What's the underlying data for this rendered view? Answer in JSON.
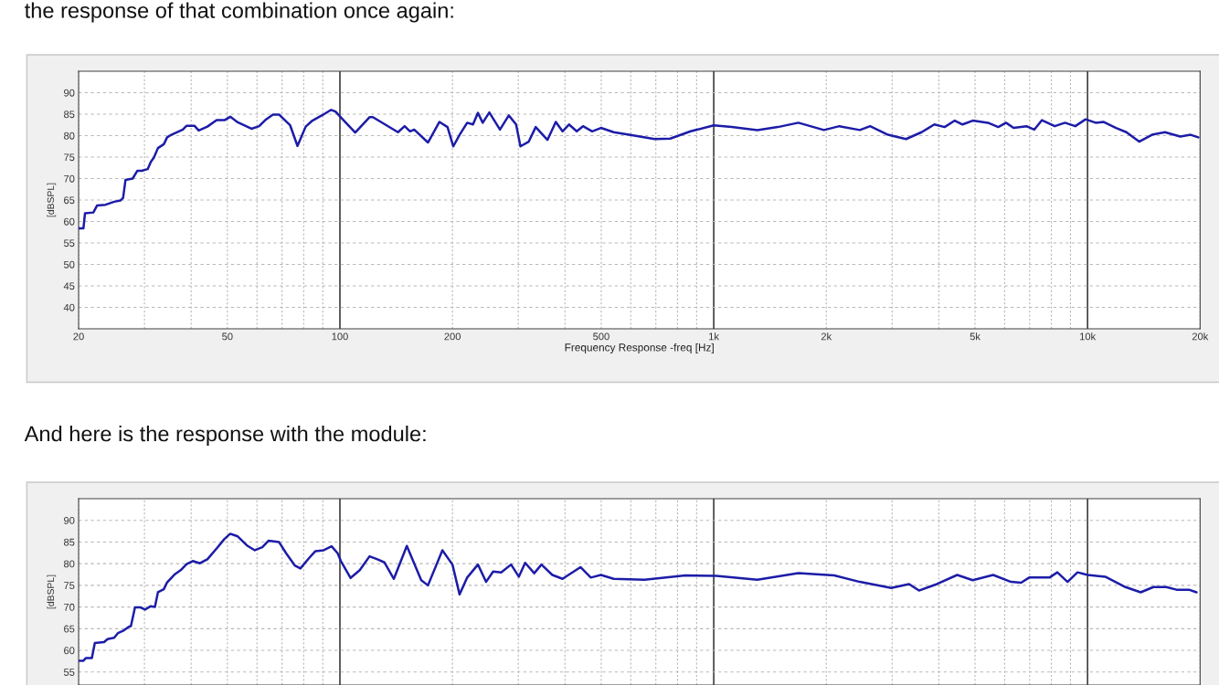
{
  "chart_data": [
    {
      "type": "line",
      "annotations": [
        "the response of that combination once again:"
      ],
      "xlabel": "Frequency Response -freq [Hz]",
      "ylabel": "[dBSPL]",
      "log": "x",
      "grid": true,
      "xlim": [
        20,
        20000
      ],
      "ylim": [
        35,
        95
      ],
      "yticks": [
        40,
        45,
        50,
        55,
        60,
        65,
        70,
        75,
        80,
        85,
        90
      ],
      "xticks": [
        20,
        {
          "value": 30,
          "label": null
        },
        {
          "value": 40,
          "label": null
        },
        50,
        {
          "value": 60,
          "label": null
        },
        {
          "value": 70,
          "label": null
        },
        {
          "value": 80,
          "label": null
        },
        {
          "value": 90,
          "label": null
        },
        100,
        200,
        {
          "value": 300,
          "label": null
        },
        {
          "value": 400,
          "label": null
        },
        500,
        {
          "value": 600,
          "label": null
        },
        {
          "value": 700,
          "label": null
        },
        {
          "value": 800,
          "label": null
        },
        {
          "value": 900,
          "label": null
        },
        {
          "value": 1000,
          "label": "1k"
        },
        {
          "value": 2000,
          "label": "2k"
        },
        {
          "value": 3000,
          "label": null
        },
        {
          "value": 4000,
          "label": null
        },
        {
          "value": 5000,
          "label": "5k"
        },
        {
          "value": 6000,
          "label": null
        },
        {
          "value": 7000,
          "label": null
        },
        {
          "value": 8000,
          "label": null
        },
        {
          "value": 9000,
          "label": null
        },
        {
          "value": 10000,
          "label": "10k"
        },
        {
          "value": 20000,
          "label": "20k"
        }
      ],
      "series": [
        {
          "color": "#1c1ca8",
          "x": [
            20,
            20.6,
            20.8,
            21.9,
            22.4,
            23.6,
            24.9,
            25.9,
            26.3,
            26.7,
            27.9,
            28.7,
            29.5,
            30.6,
            31.2,
            31.8,
            32.6,
            33.8,
            34.5,
            35.4,
            38.0,
            38.9,
            40.8,
            41.9,
            44.2,
            46.8,
            49.1,
            50.9,
            53.3,
            58.0,
            60.8,
            63.1,
            66.2,
            68.7,
            73.6,
            77.0,
            81.0,
            84.4,
            90.3,
            94.7,
            97.3,
            102.5,
            109.9,
            120,
            122.5,
            143,
            149,
            154,
            158,
            172,
            184.6,
            194,
            201,
            209,
            219,
            227,
            234,
            241,
            251,
            268,
            283,
            296,
            304,
            320,
            334,
            359,
            378,
            394,
            410,
            430,
            447,
            473,
            499,
            540,
            594,
            695,
            765,
            867,
            1000,
            1117,
            1308,
            1484,
            1684,
            1972,
            2168,
            2459,
            2620,
            2925,
            3268,
            3597,
            3891,
            4146,
            4412,
            4630,
            4930,
            5414,
            5770,
            6050,
            6340,
            6860,
            7200,
            7550,
            8170,
            8700,
            9270,
            9880,
            10510,
            11020,
            11920,
            12700,
            13740,
            14870,
            16100,
            17700,
            18870,
            19780
          ],
          "values": [
            58.4,
            58.4,
            61.9,
            62.1,
            63.7,
            63.9,
            64.6,
            64.9,
            65.5,
            69.7,
            70.0,
            71.8,
            71.8,
            72.2,
            73.9,
            74.9,
            77.1,
            78.0,
            79.6,
            80.2,
            81.4,
            82.3,
            82.3,
            81.2,
            82.1,
            83.6,
            83.6,
            84.4,
            83.1,
            81.6,
            82.2,
            83.6,
            84.9,
            84.9,
            82.4,
            77.6,
            82.1,
            83.5,
            84.9,
            86.0,
            85.6,
            83.5,
            80.7,
            84.3,
            84.3,
            80.8,
            82.2,
            81.0,
            81.4,
            78.4,
            83.2,
            82.0,
            77.5,
            80.2,
            83.0,
            82.6,
            85.3,
            83.0,
            85.4,
            81.4,
            84.7,
            82.6,
            77.5,
            78.6,
            82.0,
            79.0,
            83.2,
            81.0,
            82.6,
            81.0,
            82.2,
            81.0,
            81.8,
            80.8,
            80.2,
            79.2,
            79.3,
            81.0,
            82.4,
            82.0,
            81.3,
            82.0,
            83.0,
            81.3,
            82.2,
            81.3,
            82.2,
            80.2,
            79.2,
            80.8,
            82.6,
            82.0,
            83.5,
            82.6,
            83.5,
            83.0,
            82.0,
            83.0,
            81.8,
            82.2,
            81.4,
            83.6,
            82.2,
            83.0,
            82.2,
            83.8,
            83.0,
            83.2,
            81.8,
            80.8,
            78.6,
            80.2,
            80.8,
            79.8,
            80.2,
            79.6
          ]
        }
      ]
    },
    {
      "type": "line",
      "annotations": [
        "And here is the response with the module:"
      ],
      "ylabel": "[dBSPL]",
      "log": "x",
      "grid": true,
      "tick_labels": "y",
      "xlim": [
        20,
        20000
      ],
      "ylim": [
        52,
        95
      ],
      "yticks": [
        55,
        60,
        65,
        70,
        75,
        80,
        85,
        90
      ],
      "xticks": [
        {
          "value": 20,
          "label": null
        },
        {
          "value": 30,
          "label": null
        },
        {
          "value": 40,
          "label": null
        },
        {
          "value": 50,
          "label": null
        },
        {
          "value": 60,
          "label": null
        },
        {
          "value": 70,
          "label": null
        },
        {
          "value": 80,
          "label": null
        },
        {
          "value": 90,
          "label": null
        },
        {
          "value": 100,
          "label": null
        },
        {
          "value": 200,
          "label": null
        },
        {
          "value": 300,
          "label": null
        },
        {
          "value": 400,
          "label": null
        },
        {
          "value": 500,
          "label": null
        },
        {
          "value": 600,
          "label": null
        },
        {
          "value": 700,
          "label": null
        },
        {
          "value": 800,
          "label": null
        },
        {
          "value": 900,
          "label": null
        },
        {
          "value": 1000,
          "label": null
        },
        {
          "value": 2000,
          "label": null
        },
        {
          "value": 3000,
          "label": null
        },
        {
          "value": 4000,
          "label": null
        },
        {
          "value": 5000,
          "label": null
        },
        {
          "value": 6000,
          "label": null
        },
        {
          "value": 7000,
          "label": null
        },
        {
          "value": 8000,
          "label": null
        },
        {
          "value": 9000,
          "label": null
        },
        {
          "value": 10000,
          "label": null
        },
        {
          "value": 20000,
          "label": null
        }
      ],
      "series": [
        {
          "color": "#1c1ca8",
          "x": [
            20,
            20.6,
            20.9,
            21.7,
            22.1,
            23.4,
            23.9,
            24.9,
            25.5,
            26.3,
            27.2,
            27.6,
            28.3,
            29.3,
            30.1,
            31.2,
            32.0,
            32.6,
            33.8,
            34.5,
            36.1,
            37.5,
            38.9,
            40.4,
            42.2,
            44.2,
            46.8,
            49.1,
            50.9,
            53.3,
            56.4,
            59.2,
            62.0,
            64.4,
            68.7,
            71.8,
            75.7,
            78.4,
            82.5,
            86.0,
            90.5,
            95.0,
            98.6,
            100.6,
            106.8,
            113,
            120,
            126,
            131.5,
            139.4,
            151,
            165,
            172,
            188,
            200,
            209,
            219,
            234,
            246,
            257,
            270,
            287,
            301,
            313,
            331,
            346,
            370,
            394,
            440,
            469,
            499,
            540,
            653,
            840,
            1016,
            1308,
            1684,
            2100,
            2459,
            2985,
            3330,
            3540,
            3955,
            4480,
            4930,
            5590,
            6240,
            6640,
            6980,
            7910,
            8300,
            8840,
            9400,
            10000,
            11150,
            12630,
            13870,
            15000,
            16240,
            17290,
            18670,
            19560
          ],
          "values": [
            57.6,
            57.6,
            58.2,
            58.2,
            61.7,
            61.9,
            62.6,
            62.9,
            64.0,
            64.5,
            65.4,
            65.6,
            69.9,
            69.9,
            69.4,
            70.2,
            70.0,
            73.4,
            74.1,
            75.7,
            77.5,
            78.5,
            79.9,
            80.6,
            80.1,
            81.0,
            83.5,
            85.7,
            86.9,
            86.3,
            84.2,
            83.1,
            83.8,
            85.3,
            85.0,
            82.4,
            79.6,
            78.9,
            81.2,
            82.9,
            83.1,
            84.0,
            82.4,
            80.6,
            76.7,
            78.5,
            81.7,
            81.0,
            80.3,
            76.5,
            84.1,
            76.2,
            75.0,
            83.1,
            79.8,
            72.9,
            76.8,
            79.8,
            75.8,
            78.2,
            78.0,
            79.8,
            77.0,
            80.2,
            77.8,
            79.8,
            77.4,
            76.5,
            79.2,
            76.8,
            77.4,
            76.5,
            76.3,
            77.3,
            77.2,
            76.3,
            77.8,
            77.3,
            75.8,
            74.4,
            75.3,
            73.8,
            75.3,
            77.4,
            76.2,
            77.4,
            75.8,
            75.6,
            76.8,
            76.8,
            78.0,
            75.8,
            78.0,
            77.4,
            77.0,
            74.6,
            73.4,
            74.6,
            74.6,
            74.0,
            74.0,
            73.4
          ]
        }
      ]
    }
  ]
}
